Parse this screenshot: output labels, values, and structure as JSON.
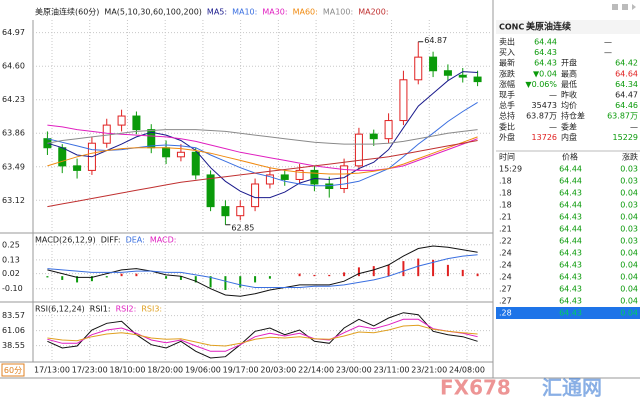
{
  "chart_data": {
    "type": "candlestick",
    "title": "美原油连续(60分)",
    "ma_label": "MA(5,10,30,60,100,200)",
    "period": "60分",
    "ylim": [
      62.77,
      65.11
    ],
    "yticks": [
      64.97,
      {
        "value": 64.6,
        "label": "64.60"
      },
      64.23,
      63.86,
      63.49,
      63.12
    ],
    "up_color": "#e02020",
    "down_color": "#0a9a0a",
    "candles": [
      [
        63.8,
        63.88,
        63.62,
        63.7
      ],
      [
        63.7,
        63.74,
        63.42,
        63.5
      ],
      [
        63.5,
        63.58,
        63.36,
        63.45
      ],
      [
        63.45,
        63.82,
        63.4,
        63.75
      ],
      [
        63.75,
        64.02,
        63.7,
        63.95
      ],
      [
        63.95,
        64.12,
        63.88,
        64.05
      ],
      [
        64.05,
        64.1,
        63.85,
        63.9
      ],
      [
        63.9,
        63.96,
        63.64,
        63.7
      ],
      [
        63.7,
        63.78,
        63.52,
        63.6
      ],
      [
        63.6,
        63.74,
        63.55,
        63.65
      ],
      [
        63.65,
        63.7,
        63.35,
        63.4
      ],
      [
        63.4,
        63.45,
        63.0,
        63.05
      ],
      [
        63.05,
        63.12,
        62.85,
        62.95
      ],
      [
        62.95,
        63.12,
        62.9,
        63.05
      ],
      [
        63.05,
        63.36,
        63.0,
        63.3
      ],
      [
        63.3,
        63.48,
        63.25,
        63.4
      ],
      [
        63.4,
        63.46,
        63.28,
        63.35
      ],
      [
        63.35,
        63.52,
        63.3,
        63.45
      ],
      [
        63.45,
        63.5,
        63.22,
        63.3
      ],
      [
        63.3,
        63.38,
        63.15,
        63.25
      ],
      [
        63.25,
        63.58,
        63.2,
        63.5
      ],
      [
        63.5,
        63.92,
        63.45,
        63.85
      ],
      [
        63.85,
        63.9,
        63.72,
        63.8
      ],
      [
        63.8,
        64.08,
        63.75,
        64.0
      ],
      [
        64.0,
        64.55,
        63.95,
        64.45
      ],
      [
        64.45,
        64.87,
        64.4,
        64.7
      ],
      [
        64.7,
        64.76,
        64.48,
        64.55
      ],
      [
        64.55,
        64.62,
        64.44,
        64.5
      ],
      [
        64.5,
        64.58,
        64.42,
        64.48
      ],
      [
        64.48,
        64.55,
        64.38,
        64.43
      ]
    ],
    "ma": [
      {
        "name": "MA5:",
        "color": "#1a1a8c",
        "values": [
          63.75,
          63.7,
          63.62,
          63.6,
          63.67,
          63.74,
          63.82,
          63.87,
          63.84,
          63.78,
          63.67,
          63.48,
          63.33,
          63.22,
          63.15,
          63.15,
          63.21,
          63.31,
          63.36,
          63.35,
          63.37,
          63.47,
          63.54,
          63.68,
          63.92,
          64.16,
          64.3,
          64.44,
          64.54,
          64.53
        ]
      },
      {
        "name": "MA10:",
        "color": "#3a6fe0",
        "values": [
          63.8,
          63.76,
          63.72,
          63.68,
          63.67,
          63.68,
          63.7,
          63.72,
          63.73,
          63.72,
          63.7,
          63.62,
          63.55,
          63.48,
          63.42,
          63.38,
          63.33,
          63.3,
          63.28,
          63.28,
          63.3,
          63.33,
          63.4,
          63.47,
          63.6,
          63.74,
          63.86,
          63.99,
          64.1,
          64.2
        ]
      },
      {
        "name": "MA30:",
        "color": "#e020c0",
        "values": [
          63.95,
          63.93,
          63.9,
          63.88,
          63.86,
          63.85,
          63.84,
          63.83,
          63.82,
          63.8,
          63.77,
          63.73,
          63.69,
          63.65,
          63.62,
          63.59,
          63.56,
          63.53,
          63.5,
          63.48,
          63.46,
          63.45,
          63.45,
          63.47,
          63.5,
          63.56,
          63.62,
          63.68,
          63.74,
          63.8
        ]
      },
      {
        "name": "MA60:",
        "color": "#f08a10",
        "values": [
          63.5,
          63.55,
          63.6,
          63.64,
          63.67,
          63.69,
          63.7,
          63.7,
          63.7,
          63.69,
          63.67,
          63.64,
          63.6,
          63.56,
          63.52,
          63.48,
          63.45,
          63.43,
          63.42,
          63.41,
          63.41,
          63.42,
          63.44,
          63.47,
          63.52,
          63.58,
          63.64,
          63.7,
          63.76,
          63.82
        ]
      },
      {
        "name": "MA100:",
        "color": "#8a8a8a",
        "values": [
          63.75,
          63.78,
          63.8,
          63.82,
          63.84,
          63.86,
          63.88,
          63.89,
          63.9,
          63.9,
          63.9,
          63.89,
          63.88,
          63.86,
          63.84,
          63.82,
          63.8,
          63.78,
          63.76,
          63.75,
          63.74,
          63.74,
          63.74,
          63.75,
          63.77,
          63.8,
          63.83,
          63.86,
          63.88,
          63.9
        ]
      },
      {
        "name": "MA200:",
        "color": "#c03030",
        "values": [
          63.05,
          63.08,
          63.11,
          63.14,
          63.17,
          63.2,
          63.23,
          63.26,
          63.29,
          63.32,
          63.34,
          63.36,
          63.38,
          63.4,
          63.42,
          63.44,
          63.46,
          63.48,
          63.5,
          63.52,
          63.54,
          63.56,
          63.58,
          63.6,
          63.63,
          63.66,
          63.69,
          63.72,
          63.75,
          63.78
        ]
      }
    ],
    "high_label": 64.87,
    "low_label": 62.85,
    "xlabels": [
      "17/13:00",
      "17/23:00",
      "18/10:00",
      "18/20:00",
      "19/06:00",
      "19/17:00",
      "20/03:00",
      "22/14:00",
      "23/00:00",
      "23/11:00",
      "23/21:00",
      "24/08:00"
    ],
    "macd": {
      "type": "line",
      "label": "MACD(26,12,9)",
      "ylim": [
        -0.19,
        0.32
      ],
      "yticks": [
        0.25,
        0.13,
        0.02,
        {
          "value": -0.1,
          "label": "-0.10"
        }
      ],
      "series": [
        {
          "name": "DIFF:",
          "color": "#111111",
          "values": [
            0.05,
            0.02,
            -0.01,
            -0.01,
            0.02,
            0.05,
            0.06,
            0.04,
            0.01,
            0.0,
            -0.04,
            -0.1,
            -0.15,
            -0.16,
            -0.14,
            -0.11,
            -0.09,
            -0.07,
            -0.07,
            -0.07,
            -0.04,
            0.02,
            0.05,
            0.09,
            0.16,
            0.22,
            0.24,
            0.23,
            0.21,
            0.19
          ]
        },
        {
          "name": "DEA:",
          "color": "#3a6fe0",
          "values": [
            0.06,
            0.05,
            0.04,
            0.03,
            0.03,
            0.03,
            0.04,
            0.04,
            0.03,
            0.03,
            0.01,
            -0.01,
            -0.04,
            -0.07,
            -0.09,
            -0.09,
            -0.09,
            -0.09,
            -0.08,
            -0.08,
            -0.07,
            -0.05,
            -0.03,
            0.0,
            0.04,
            0.08,
            0.11,
            0.14,
            0.16,
            0.17
          ]
        }
      ],
      "hist": {
        "name": "MACD:",
        "color": "#e020c0",
        "values": [
          -0.01,
          -0.03,
          -0.05,
          -0.04,
          -0.01,
          0.02,
          0.02,
          0.0,
          -0.02,
          -0.03,
          -0.05,
          -0.09,
          -0.11,
          -0.09,
          -0.05,
          -0.02,
          0.0,
          0.02,
          0.01,
          0.01,
          0.03,
          0.07,
          0.08,
          0.09,
          0.12,
          0.14,
          0.13,
          0.09,
          0.05,
          0.02
        ]
      }
    },
    "rsi": {
      "type": "line",
      "label": "RSI(6,12,24)",
      "ylim": [
        17,
        98
      ],
      "yticks": [
        83.57,
        61.06,
        38.55
      ],
      "series": [
        {
          "name": "RSI1:",
          "color": "#111111",
          "values": [
            45,
            35,
            38,
            62,
            72,
            75,
            55,
            40,
            35,
            45,
            30,
            20,
            22,
            40,
            60,
            65,
            55,
            62,
            45,
            42,
            65,
            78,
            68,
            80,
            88,
            85,
            60,
            55,
            52,
            45
          ]
        },
        {
          "name": "RSI2:",
          "color": "#e020c0",
          "values": [
            48,
            42,
            42,
            55,
            62,
            65,
            57,
            47,
            43,
            47,
            38,
            30,
            30,
            40,
            52,
            57,
            53,
            57,
            49,
            47,
            58,
            68,
            64,
            70,
            78,
            78,
            64,
            60,
            57,
            52
          ]
        },
        {
          "name": "RSI3:",
          "color": "#e0a020",
          "values": [
            50,
            47,
            46,
            52,
            56,
            58,
            55,
            50,
            48,
            49,
            44,
            39,
            38,
            42,
            48,
            51,
            50,
            52,
            49,
            48,
            53,
            59,
            58,
            62,
            68,
            69,
            63,
            60,
            58,
            56
          ]
        }
      ]
    }
  },
  "panel": {
    "code": "CONC",
    "name": "美原油连续",
    "quote": [
      {
        "label": "卖出",
        "value": 64.44,
        "extra": "—"
      },
      {
        "label": "买入",
        "value": 64.43,
        "extra": "—"
      },
      {
        "label": "最新",
        "value": 64.43,
        "label2": "开盘",
        "value2": 64.42
      },
      {
        "label": "涨跌",
        "value": "▼0.04",
        "label2": "最高",
        "value2": 64.64
      },
      {
        "label": "涨幅",
        "value": "▼0.06%",
        "label2": "最低",
        "value2": 64.34
      },
      {
        "label": "现手",
        "value": "—",
        "label2": "昨收",
        "value2": 64.47
      },
      {
        "label": "总手",
        "value": 35473,
        "label2": "均价",
        "value2": 64.46
      },
      {
        "label": "总持",
        "value": "63.87万",
        "label2": "持仓差",
        "value2": "63.87万"
      },
      {
        "label": "委比",
        "value": "—",
        "label2": "委差",
        "value2": "—"
      },
      {
        "label": "外盘",
        "value": 13726,
        "label2": "内盘",
        "value2": 15229
      }
    ],
    "ticks_header": [
      "时间",
      "价格",
      "涨跌"
    ],
    "ticks": [
      [
        "15:29",
        64.44,
        0.03
      ],
      [
        ".18",
        64.44,
        0.03
      ],
      [
        ".18",
        64.43,
        0.04
      ],
      [
        ".18",
        64.44,
        0.03
      ],
      [
        ".21",
        64.43,
        0.04
      ],
      [
        ".21",
        64.44,
        0.03
      ],
      [
        ".22",
        64.44,
        0.03
      ],
      [
        ".24",
        64.43,
        0.04
      ],
      [
        ".24",
        64.43,
        0.04
      ],
      [
        ".24",
        64.43,
        0.04
      ],
      [
        ".27",
        64.43,
        0.04
      ],
      [
        ".27",
        64.43,
        0.04
      ],
      [
        ".28",
        64.43,
        0.04
      ]
    ]
  },
  "watermark": {
    "brand": "FX678",
    "name": "汇通网"
  }
}
